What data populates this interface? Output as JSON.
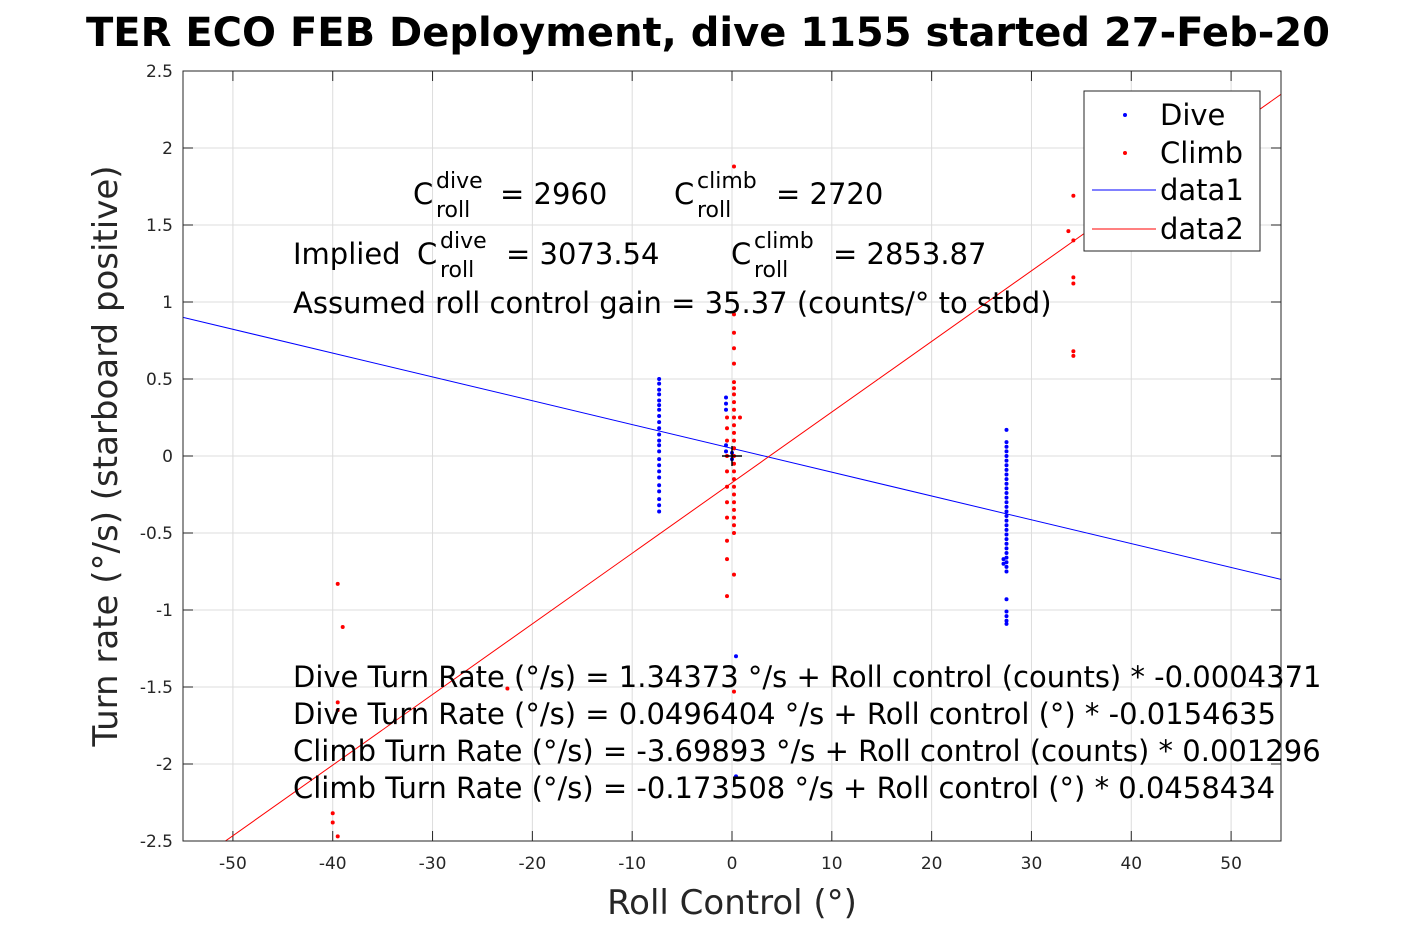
{
  "chart_data": {
    "type": "scatter",
    "title": "TER ECO FEB Deployment, dive 1155 started 27-Feb-20",
    "xlabel": "Roll Control (°)",
    "ylabel": "Turn rate (°/s) (starboard positive)",
    "xlim": [
      -55,
      55
    ],
    "ylim": [
      -2.5,
      2.5
    ],
    "grid": true,
    "legend_position": "top-right",
    "x_ticks": [
      -50,
      -40,
      -30,
      -20,
      -10,
      0,
      10,
      20,
      30,
      40,
      50
    ],
    "y_ticks": [
      -2.5,
      -2,
      -1.5,
      -1,
      -0.5,
      0,
      0.5,
      1,
      1.5,
      2,
      2.5
    ],
    "x_tick_labels": [
      "-50",
      "-40",
      "-30",
      "-20",
      "-10",
      "0",
      "10",
      "20",
      "30",
      "40",
      "50"
    ],
    "y_tick_labels": [
      "-2.5",
      "-2",
      "-1.5",
      "-1",
      "-0.5",
      "0",
      "0.5",
      "1",
      "1.5",
      "2",
      "2.5"
    ],
    "colors": {
      "dive": "#0000ff",
      "climb": "#ff0000",
      "center_marker": "#000000"
    },
    "legend": [
      {
        "label": "Dive",
        "kind": "marker",
        "color": "#0000ff"
      },
      {
        "label": "Climb",
        "kind": "marker",
        "color": "#ff0000"
      },
      {
        "label": "data1",
        "kind": "line",
        "color": "#0000ff"
      },
      {
        "label": "data2",
        "kind": "line",
        "color": "#ff0000"
      }
    ],
    "series": [
      {
        "name": "Dive",
        "kind": "scatter",
        "color": "#0000ff",
        "points": [
          [
            -7.3,
            0.5
          ],
          [
            -7.3,
            0.47
          ],
          [
            -7.3,
            0.43
          ],
          [
            -7.3,
            0.4
          ],
          [
            -7.3,
            0.36
          ],
          [
            -7.3,
            0.33
          ],
          [
            -7.3,
            0.3
          ],
          [
            -7.3,
            0.26
          ],
          [
            -7.3,
            0.22
          ],
          [
            -7.3,
            0.18
          ],
          [
            -7.3,
            0.14
          ],
          [
            -7.3,
            0.1
          ],
          [
            -7.3,
            0.07
          ],
          [
            -7.3,
            0.03
          ],
          [
            -7.3,
            -0.02
          ],
          [
            -7.3,
            -0.06
          ],
          [
            -7.3,
            -0.1
          ],
          [
            -7.3,
            -0.14
          ],
          [
            -7.3,
            -0.19
          ],
          [
            -7.3,
            -0.23
          ],
          [
            -7.3,
            -0.28
          ],
          [
            -7.3,
            -0.32
          ],
          [
            -7.3,
            -0.36
          ],
          [
            -0.6,
            0.38
          ],
          [
            -0.6,
            0.34
          ],
          [
            -0.6,
            0.3
          ],
          [
            -0.6,
            0.07
          ],
          [
            -0.6,
            0.03
          ],
          [
            0.0,
            0.02
          ],
          [
            0.0,
            -0.02
          ],
          [
            0.2,
            0.05
          ],
          [
            0.4,
            -1.3
          ],
          [
            0.4,
            -2.08
          ],
          [
            27.5,
            0.17
          ],
          [
            27.5,
            0.09
          ],
          [
            27.5,
            0.06
          ],
          [
            27.5,
            0.03
          ],
          [
            27.5,
            0.0
          ],
          [
            27.5,
            -0.03
          ],
          [
            27.5,
            -0.06
          ],
          [
            27.5,
            -0.09
          ],
          [
            27.5,
            -0.12
          ],
          [
            27.5,
            -0.15
          ],
          [
            27.5,
            -0.18
          ],
          [
            27.5,
            -0.21
          ],
          [
            27.5,
            -0.24
          ],
          [
            27.5,
            -0.27
          ],
          [
            27.5,
            -0.3
          ],
          [
            27.5,
            -0.33
          ],
          [
            27.5,
            -0.36
          ],
          [
            27.5,
            -0.39
          ],
          [
            27.5,
            -0.42
          ],
          [
            27.5,
            -0.45
          ],
          [
            27.5,
            -0.48
          ],
          [
            27.5,
            -0.51
          ],
          [
            27.5,
            -0.54
          ],
          [
            27.5,
            -0.57
          ],
          [
            27.5,
            -0.6
          ],
          [
            27.5,
            -0.63
          ],
          [
            27.5,
            -0.66
          ],
          [
            27.5,
            -0.69
          ],
          [
            27.5,
            -0.72
          ],
          [
            27.5,
            -0.75
          ],
          [
            27.2,
            -0.67
          ],
          [
            27.2,
            -0.7
          ],
          [
            27.5,
            -0.93
          ],
          [
            27.5,
            -1.01
          ],
          [
            27.5,
            -1.04
          ],
          [
            27.5,
            -1.07
          ],
          [
            27.5,
            -1.09
          ]
        ]
      },
      {
        "name": "Climb",
        "kind": "scatter",
        "color": "#ff0000",
        "points": [
          [
            0.2,
            1.88
          ],
          [
            0.2,
            0.92
          ],
          [
            0.2,
            0.8
          ],
          [
            0.2,
            0.7
          ],
          [
            0.2,
            0.6
          ],
          [
            0.2,
            0.48
          ],
          [
            0.2,
            0.44
          ],
          [
            0.2,
            0.4
          ],
          [
            0.2,
            0.35
          ],
          [
            0.2,
            0.3
          ],
          [
            0.2,
            0.25
          ],
          [
            0.2,
            0.2
          ],
          [
            0.2,
            0.15
          ],
          [
            0.2,
            0.1
          ],
          [
            0.2,
            0.05
          ],
          [
            0.2,
            0.0
          ],
          [
            0.2,
            -0.05
          ],
          [
            0.2,
            -0.1
          ],
          [
            0.2,
            -0.15
          ],
          [
            0.2,
            -0.2
          ],
          [
            0.2,
            -0.25
          ],
          [
            0.2,
            -0.3
          ],
          [
            0.2,
            -0.35
          ],
          [
            0.2,
            -0.4
          ],
          [
            0.2,
            -0.45
          ],
          [
            0.2,
            -0.5
          ],
          [
            0.2,
            -0.77
          ],
          [
            0.2,
            -1.53
          ],
          [
            -0.5,
            0.25
          ],
          [
            -0.5,
            0.18
          ],
          [
            -0.5,
            0.1
          ],
          [
            -0.5,
            0.0
          ],
          [
            -0.5,
            -0.1
          ],
          [
            -0.5,
            -0.2
          ],
          [
            -0.5,
            -0.3
          ],
          [
            -0.5,
            -0.4
          ],
          [
            -0.5,
            -0.55
          ],
          [
            -0.5,
            -0.67
          ],
          [
            -0.5,
            -0.91
          ],
          [
            0.8,
            0.25
          ],
          [
            -39.5,
            -0.83
          ],
          [
            -39.0,
            -1.11
          ],
          [
            -39.5,
            -1.6
          ],
          [
            -39.5,
            -1.65
          ],
          [
            -40.0,
            -2.32
          ],
          [
            -40.0,
            -2.38
          ],
          [
            -39.5,
            -2.47
          ],
          [
            -22.5,
            -1.51
          ],
          [
            33.7,
            1.46
          ],
          [
            34.2,
            1.69
          ],
          [
            34.2,
            1.4
          ],
          [
            34.2,
            1.16
          ],
          [
            34.2,
            1.12
          ],
          [
            34.2,
            0.68
          ],
          [
            34.2,
            0.65
          ]
        ]
      },
      {
        "name": "data1",
        "kind": "line",
        "color": "#0000ff",
        "x": [
          -55,
          55
        ],
        "y": [
          0.9001329,
          -0.8009521
        ]
      },
      {
        "name": "data2",
        "kind": "line",
        "color": "#ff0000",
        "x": [
          -55,
          55
        ],
        "y": [
          -2.694895,
          2.348879
        ]
      }
    ],
    "center_marker": {
      "x": 0,
      "y": 0,
      "symbol": "+"
    },
    "annotations": {
      "c_roll_dive": {
        "prefix": "",
        "base": "C",
        "sup": "dive",
        "sub": "roll",
        "value": "= 2960"
      },
      "c_roll_climb": {
        "prefix": "",
        "base": "C",
        "sup": "climb",
        "sub": "roll",
        "value": "= 2720"
      },
      "implied_dive": {
        "prefix": "Implied ",
        "base": "C",
        "sup": "dive",
        "sub": "roll",
        "value": "= 3073.54"
      },
      "implied_climb": {
        "prefix": "",
        "base": "C",
        "sup": "climb",
        "sub": "roll",
        "value": "= 2853.87"
      },
      "gain_line": "Assumed roll control gain = 35.37 (counts/° to stbd)",
      "equations": [
        "Dive Turn Rate (°/s) = 1.34373 °/s + Roll control (counts) * -0.0004371",
        "Dive Turn Rate (°/s) = 0.0496404 °/s + Roll control (°) * -0.0154635",
        "Climb Turn Rate (°/s) = -3.69893 °/s + Roll control (counts) * 0.001296",
        "Climb Turn Rate (°/s) = -0.173508 °/s + Roll control (°) * 0.0458434"
      ]
    }
  }
}
